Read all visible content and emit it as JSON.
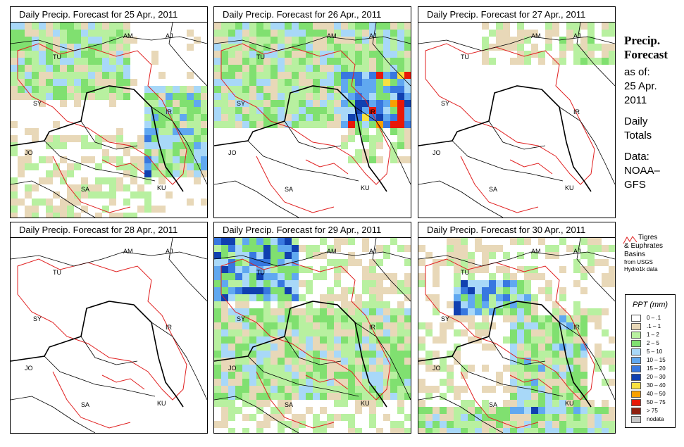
{
  "panels": [
    {
      "title": "Daily Precip. Forecast for  25 Apr., 2011"
    },
    {
      "title": "Daily Precip. Forecast for  26 Apr., 2011"
    },
    {
      "title": "Daily Precip. Forecast for  27 Apr., 2011"
    },
    {
      "title": "Daily Precip. Forecast for  28 Apr., 2011"
    },
    {
      "title": "Daily Precip. Forecast for  29 Apr., 2011"
    },
    {
      "title": "Daily Precip. Forecast for  30 Apr., 2011"
    }
  ],
  "country_labels": [
    "AM",
    "AJ",
    "TU",
    "SY",
    "IR",
    "JO",
    "SA",
    "KU"
  ],
  "side": {
    "title_line1": "Precip.",
    "title_line2": "Forecast",
    "asof": "as of:",
    "date_line1": "25 Apr.",
    "date_line2": "2011",
    "daily1": "Daily",
    "daily2": "Totals",
    "data1": "Data:",
    "data2": "NOAA–",
    "data3": "GFS"
  },
  "basin": {
    "line1": "Tigres",
    "line2": "& Euphrates",
    "line3": "Basins",
    "line4": "from USGS",
    "line5": "Hydro1k data"
  },
  "legend": {
    "title": "PPT (mm)",
    "items": [
      {
        "label": "0 – .1",
        "color": "#ffffff"
      },
      {
        "label": ".1 – 1",
        "color": "#e8d8b8"
      },
      {
        "label": "1 – 2",
        "color": "#b8f0a0"
      },
      {
        "label": "2 – 5",
        "color": "#80e070"
      },
      {
        "label": "5 – 10",
        "color": "#a8d8f8"
      },
      {
        "label": "10 – 15",
        "color": "#60a8f0"
      },
      {
        "label": "15 – 20",
        "color": "#3878e0"
      },
      {
        "label": "20 – 30",
        "color": "#1040b0"
      },
      {
        "label": "30 – 40",
        "color": "#f8e040"
      },
      {
        "label": "40 – 50",
        "color": "#f8a000"
      },
      {
        "label": "50 – 75",
        "color": "#e81808"
      },
      {
        "label": "> 75",
        "color": "#902010"
      },
      {
        "label": "nodata",
        "color": "#c8c8c8"
      }
    ]
  }
}
